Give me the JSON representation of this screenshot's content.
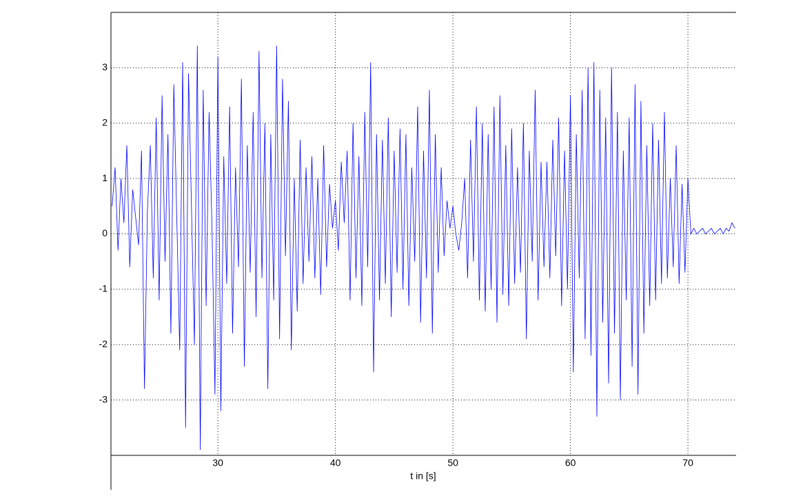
{
  "chart_data": {
    "type": "line",
    "xlabel": "t in [s]",
    "x": [
      21,
      21.25,
      21.5,
      21.75,
      22,
      22.25,
      22.5,
      22.75,
      23,
      23.25,
      23.5,
      23.75,
      24,
      24.25,
      24.5,
      24.75,
      25,
      25.25,
      25.5,
      25.75,
      26,
      26.25,
      26.5,
      26.75,
      27,
      27.25,
      27.5,
      27.75,
      28,
      28.25,
      28.5,
      28.75,
      29,
      29.25,
      29.5,
      29.75,
      30,
      30.25,
      30.5,
      30.75,
      31,
      31.25,
      31.5,
      31.75,
      32,
      32.25,
      32.5,
      32.75,
      33,
      33.25,
      33.5,
      33.75,
      34,
      34.25,
      34.5,
      34.75,
      35,
      35.25,
      35.5,
      35.75,
      36,
      36.25,
      36.5,
      36.75,
      37,
      37.25,
      37.5,
      37.75,
      38,
      38.25,
      38.5,
      38.75,
      39,
      39.25,
      39.5,
      39.75,
      40,
      40.25,
      40.5,
      40.75,
      41,
      41.25,
      41.5,
      41.75,
      42,
      42.25,
      42.5,
      42.75,
      43,
      43.25,
      43.5,
      43.75,
      44,
      44.25,
      44.5,
      44.75,
      45,
      45.25,
      45.5,
      45.75,
      46,
      46.25,
      46.5,
      46.75,
      47,
      47.25,
      47.5,
      47.75,
      48,
      48.25,
      48.5,
      48.75,
      49,
      49.25,
      49.5,
      49.75,
      50,
      50.25,
      50.5,
      50.75,
      51,
      51.25,
      51.5,
      51.75,
      52,
      52.25,
      52.5,
      52.75,
      53,
      53.25,
      53.5,
      53.75,
      54,
      54.25,
      54.5,
      54.75,
      55,
      55.25,
      55.5,
      55.75,
      56,
      56.25,
      56.5,
      56.75,
      57,
      57.25,
      57.5,
      57.75,
      58,
      58.25,
      58.5,
      58.75,
      59,
      59.25,
      59.5,
      59.75,
      60,
      60.25,
      60.5,
      60.75,
      61,
      61.25,
      61.5,
      61.75,
      62,
      62.25,
      62.5,
      62.75,
      63,
      63.25,
      63.5,
      63.75,
      64,
      64.25,
      64.5,
      64.75,
      65,
      65.25,
      65.5,
      65.75,
      66,
      66.25,
      66.5,
      66.75,
      67,
      67.25,
      67.5,
      67.75,
      68,
      68.25,
      68.5,
      68.75,
      69,
      69.25,
      69.5,
      69.75,
      70,
      70.25,
      70.5,
      70.75,
      71,
      71.25,
      71.5,
      71.75,
      72,
      72.25,
      72.5,
      72.75,
      73,
      73.25,
      73.5,
      73.75,
      74
    ],
    "series": [
      {
        "color": "#0000ff",
        "values": [
          0.5,
          1.2,
          -0.3,
          1.0,
          0.2,
          1.6,
          -0.6,
          0.8,
          0.3,
          -0.2,
          1.5,
          -2.8,
          0.4,
          1.6,
          -0.8,
          2.1,
          -1.2,
          2.5,
          -0.5,
          1.8,
          -1.8,
          2.7,
          0.3,
          -2.1,
          3.1,
          -3.5,
          2.9,
          0.5,
          -2.0,
          3.4,
          -3.9,
          2.6,
          -1.3,
          2.2,
          0.1,
          -2.9,
          3.2,
          -3.2,
          1.4,
          -0.9,
          2.3,
          -1.8,
          1.2,
          -0.6,
          2.8,
          -2.4,
          1.6,
          -0.7,
          2.2,
          -1.5,
          3.3,
          -0.8,
          2.0,
          -2.8,
          1.8,
          -1.2,
          3.4,
          -1.9,
          2.8,
          -0.4,
          2.4,
          -2.1,
          1.0,
          -1.4,
          1.7,
          -0.9,
          1.2,
          -0.5,
          1.4,
          -0.8,
          1.0,
          -1.1,
          1.6,
          -0.6,
          0.9,
          0.1,
          0.6,
          -0.3,
          1.3,
          0.2,
          1.5,
          -1.2,
          2.0,
          -0.8,
          1.4,
          -1.3,
          2.2,
          -0.6,
          3.1,
          -2.5,
          1.8,
          -1.2,
          1.7,
          -0.9,
          2.1,
          -1.5,
          1.5,
          -0.7,
          1.9,
          -1.0,
          1.8,
          -1.3,
          1.2,
          -0.5,
          2.3,
          -1.6,
          1.5,
          -0.8,
          2.6,
          -1.8,
          1.8,
          -0.7,
          1.2,
          -0.4,
          0.6,
          0.1,
          0.5,
          0.0,
          -0.3,
          0.2,
          1.0,
          -0.8,
          1.7,
          -0.5,
          2.3,
          -1.2,
          2.0,
          -1.4,
          1.8,
          -1.0,
          2.3,
          -1.6,
          2.5,
          -1.1,
          1.6,
          -1.3,
          1.9,
          -0.9,
          1.2,
          -0.7,
          2.0,
          -1.9,
          1.5,
          -0.5,
          2.6,
          -1.2,
          1.3,
          -0.6,
          1.3,
          -0.8,
          1.7,
          -0.4,
          2.1,
          -1.3,
          1.5,
          -1.0,
          2.5,
          -2.5,
          1.8,
          -0.8,
          2.6,
          -1.9,
          3.0,
          -2.2,
          3.1,
          -3.3,
          2.6,
          -1.6,
          2.1,
          -2.7,
          3.0,
          -1.8,
          2.2,
          -3.0,
          1.5,
          -1.2,
          2.1,
          -2.4,
          2.7,
          -2.9,
          2.4,
          -1.8,
          1.6,
          -1.3,
          2.0,
          -1.2,
          1.7,
          -0.9,
          2.2,
          -0.8,
          1.0,
          -0.6,
          1.6,
          -0.9,
          0.9,
          -0.7,
          1.0,
          0.0,
          0.1,
          0.0,
          0.05,
          0.1,
          0.0,
          0.05,
          0.1,
          0.0,
          0.05,
          0.1,
          0.0,
          0.1,
          0.05,
          0.2,
          0.1
        ]
      }
    ],
    "xlim": [
      20.9,
      74.1
    ],
    "ylim": [
      -4,
      4
    ],
    "xticks": [
      30,
      40,
      50,
      60,
      70
    ],
    "yticks": [
      -3,
      -2,
      -1,
      0,
      1,
      2,
      3
    ],
    "grid": true
  }
}
